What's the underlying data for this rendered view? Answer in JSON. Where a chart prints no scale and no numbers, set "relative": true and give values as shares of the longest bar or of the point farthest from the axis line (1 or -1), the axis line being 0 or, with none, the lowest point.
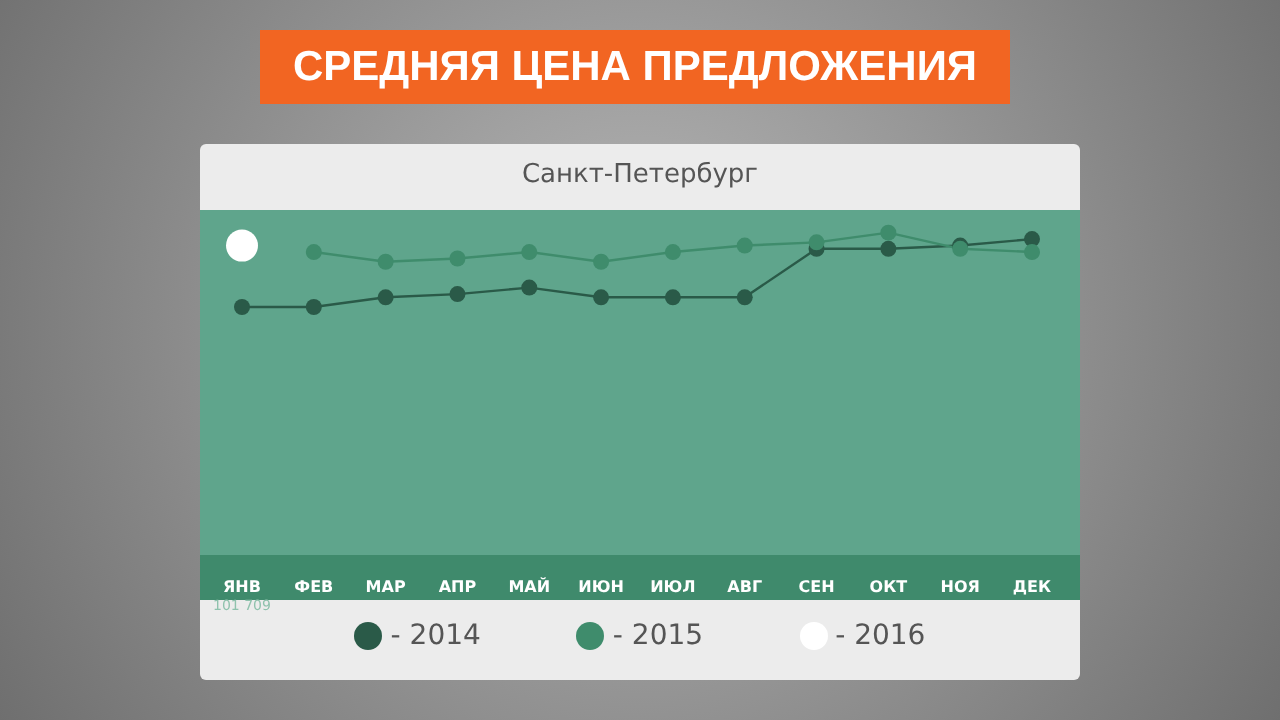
{
  "chart_data": {
    "type": "line",
    "title": "СРЕДНЯЯ ЦЕНА ПРЕДЛОЖЕНИЯ",
    "subtitle": "Санкт-Петербург",
    "relative": true,
    "marker": "circle",
    "legend": "bottom",
    "categories": [
      "ЯНВ",
      "ФЕВ",
      "МАР",
      "АПР",
      "МАЙ",
      "ИЮН",
      "ИЮЛ",
      "АВГ",
      "СЕН",
      "ОКТ",
      "НОЯ",
      "ДЕК"
    ],
    "series": [
      {
        "name": "- 2014",
        "color": "#2a5a48",
        "values": [
          0.77,
          0.77,
          0.8,
          0.81,
          0.83,
          0.8,
          0.8,
          0.8,
          0.95,
          0.95,
          0.96,
          0.98
        ]
      },
      {
        "name": "- 2015",
        "color": "#3f8c6c",
        "values": [
          null,
          0.94,
          0.91,
          0.92,
          0.94,
          0.91,
          0.94,
          0.96,
          0.97,
          1,
          0.95,
          0.94
        ]
      },
      {
        "name": "- 2016",
        "color": "#ffffff",
        "values": [
          0.96,
          null,
          null,
          null,
          null,
          null,
          null,
          null,
          null,
          null,
          null,
          null
        ]
      }
    ],
    "annotations": [
      "101 709"
    ]
  }
}
